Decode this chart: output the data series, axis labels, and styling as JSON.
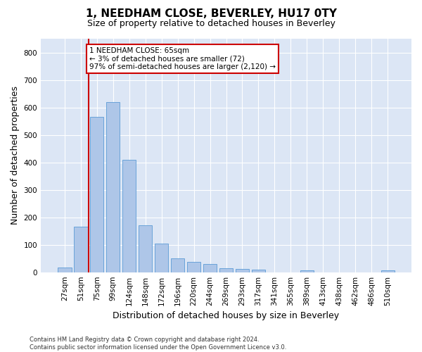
{
  "title": "1, NEEDHAM CLOSE, BEVERLEY, HU17 0TY",
  "subtitle": "Size of property relative to detached houses in Beverley",
  "xlabel": "Distribution of detached houses by size in Beverley",
  "ylabel": "Number of detached properties",
  "categories": [
    "27sqm",
    "51sqm",
    "75sqm",
    "99sqm",
    "124sqm",
    "148sqm",
    "172sqm",
    "196sqm",
    "220sqm",
    "244sqm",
    "269sqm",
    "293sqm",
    "317sqm",
    "341sqm",
    "365sqm",
    "389sqm",
    "413sqm",
    "438sqm",
    "462sqm",
    "486sqm",
    "510sqm"
  ],
  "values": [
    18,
    165,
    565,
    620,
    410,
    170,
    103,
    50,
    38,
    30,
    15,
    13,
    10,
    0,
    0,
    8,
    0,
    0,
    0,
    0,
    7
  ],
  "bar_color": "#aec6e8",
  "bar_edge_color": "#5b9bd5",
  "vline_x_index": 1.5,
  "vline_color": "#cc0000",
  "annotation_text": "1 NEEDHAM CLOSE: 65sqm\n← 3% of detached houses are smaller (72)\n97% of semi-detached houses are larger (2,120) →",
  "annotation_box_color": "#ffffff",
  "annotation_box_edge_color": "#cc0000",
  "ylim": [
    0,
    850
  ],
  "yticks": [
    0,
    100,
    200,
    300,
    400,
    500,
    600,
    700,
    800
  ],
  "plot_bg_color": "#dce6f5",
  "footer_line1": "Contains HM Land Registry data © Crown copyright and database right 2024.",
  "footer_line2": "Contains public sector information licensed under the Open Government Licence v3.0.",
  "title_fontsize": 11,
  "subtitle_fontsize": 9,
  "tick_fontsize": 7.5,
  "ylabel_fontsize": 9,
  "xlabel_fontsize": 9,
  "annotation_fontsize": 7.5,
  "footer_fontsize": 6
}
